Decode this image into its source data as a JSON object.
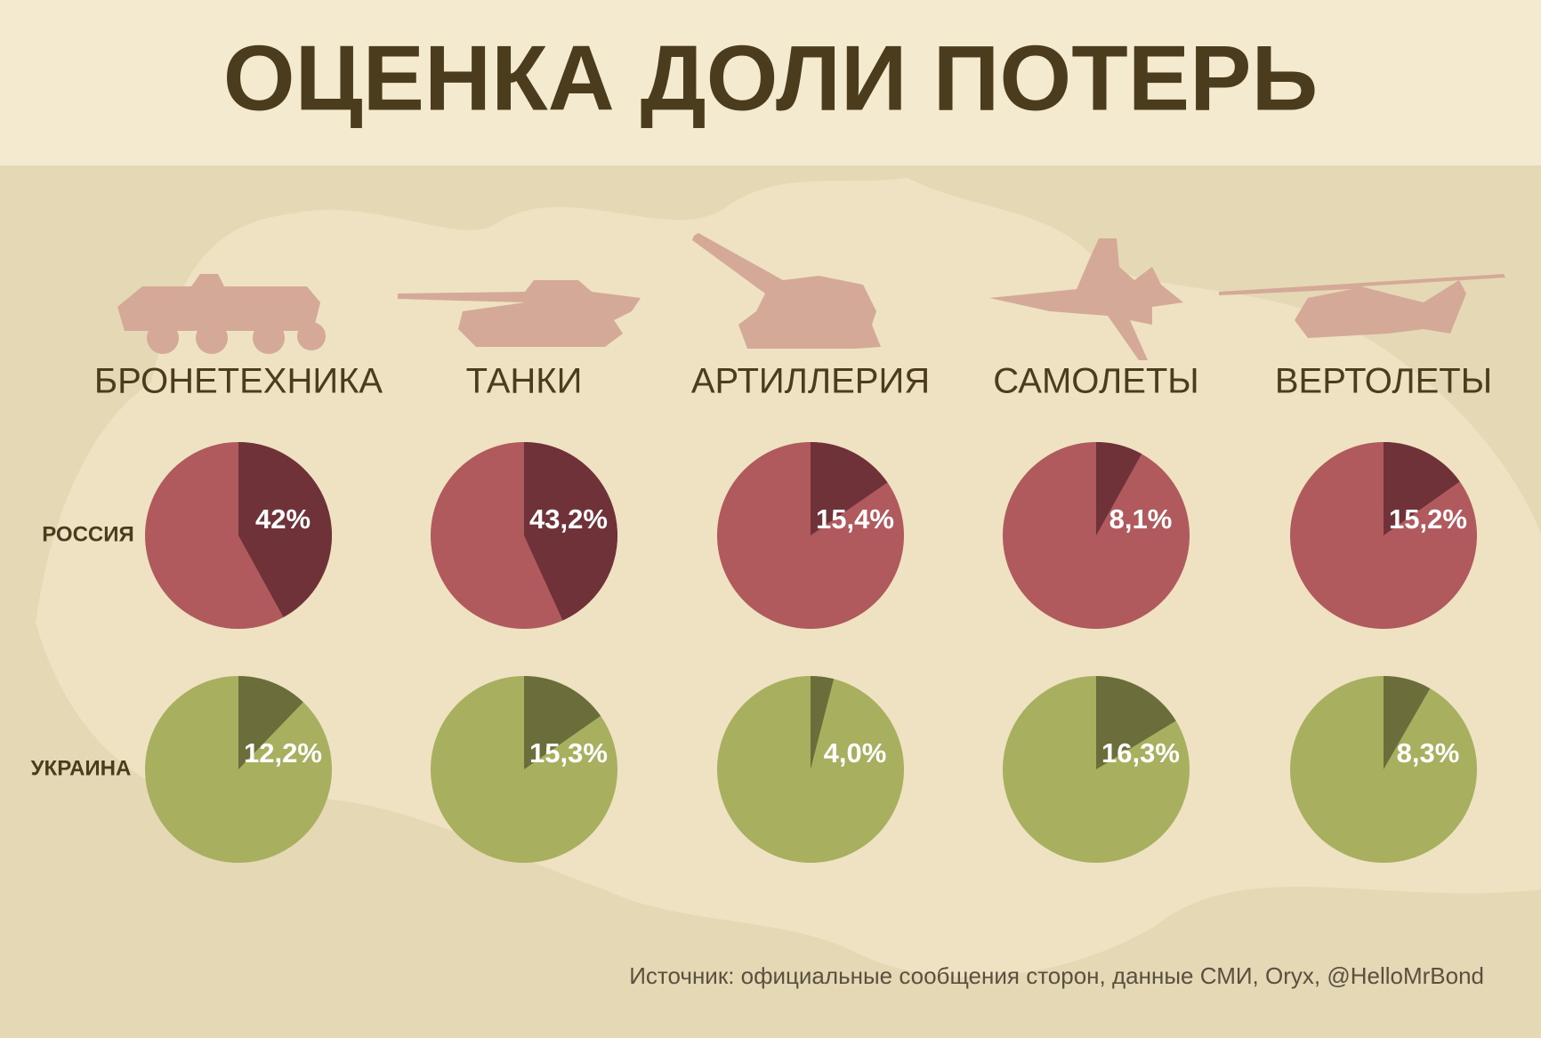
{
  "header": {
    "title": "ОЦЕНКА ДОЛИ ПОТЕРЬ"
  },
  "columns": [
    "БРОНЕТЕХНИКА",
    "ТАНКИ",
    "АРТИЛЛЕРИЯ",
    "САМОЛЕТЫ",
    "ВЕРТОЛЕТЫ"
  ],
  "rows": [
    "РОССИЯ",
    "УКРАИНА"
  ],
  "source": "Источник: официальные сообщения сторон, данные СМИ, Oryx, @HelloMrBond",
  "chart_data": [
    {
      "type": "pie",
      "values": [
        42
      ],
      "value_labels": [
        "42%"
      ],
      "color": "#6e3238",
      "rest_color": "#b05a5e"
    },
    {
      "type": "pie",
      "values": [
        43.2
      ],
      "value_labels": [
        "43,2%"
      ],
      "color": "#6e3238",
      "rest_color": "#b05a5e"
    },
    {
      "type": "pie",
      "values": [
        15.4
      ],
      "value_labels": [
        "15,4%"
      ],
      "color": "#6e3238",
      "rest_color": "#b05a5e"
    },
    {
      "type": "pie",
      "values": [
        8.1
      ],
      "value_labels": [
        "8,1%"
      ],
      "color": "#6e3238",
      "rest_color": "#b05a5e"
    },
    {
      "type": "pie",
      "values": [
        15.2
      ],
      "value_labels": [
        "15,2%"
      ],
      "color": "#6e3238",
      "rest_color": "#b05a5e"
    },
    {
      "type": "pie",
      "values": [
        12.2
      ],
      "value_labels": [
        "12,2%"
      ],
      "color": "#6b6e3a",
      "rest_color": "#a8b060"
    },
    {
      "type": "pie",
      "values": [
        15.3
      ],
      "value_labels": [
        "15,3%"
      ],
      "color": "#6b6e3a",
      "rest_color": "#a8b060"
    },
    {
      "type": "pie",
      "values": [
        4.0
      ],
      "value_labels": [
        "4,0%"
      ],
      "color": "#6b6e3a",
      "rest_color": "#a8b060"
    },
    {
      "type": "pie",
      "values": [
        16.3
      ],
      "value_labels": [
        "16,3%"
      ],
      "color": "#6b6e3a",
      "rest_color": "#a8b060"
    },
    {
      "type": "pie",
      "values": [
        8.3
      ],
      "value_labels": [
        "8,3%"
      ],
      "color": "#6b6e3a",
      "rest_color": "#a8b060"
    }
  ]
}
